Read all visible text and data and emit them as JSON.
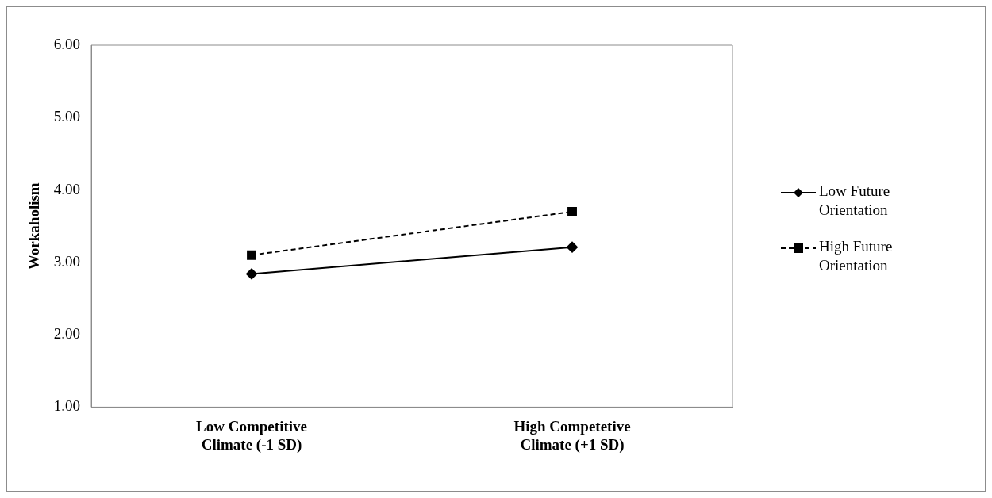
{
  "chart_data": {
    "type": "line",
    "ylabel": "Workaholism",
    "categories": [
      "Low Competitive Climate (-1 SD)",
      "High Competetive Climate (+1 SD)"
    ],
    "series": [
      {
        "name": "Low Future Orientation",
        "color": "#000000",
        "values": [
          2.84,
          3.21
        ],
        "marker": "diamond",
        "line_style": "solid"
      },
      {
        "name": "High Future Orientation",
        "color": "#000000",
        "values": [
          3.1,
          3.7
        ],
        "marker": "square",
        "line_style": "dashed"
      }
    ],
    "ylim": [
      1,
      6
    ],
    "yticks": [
      {
        "value": 1,
        "label": "1.00"
      },
      {
        "value": 2,
        "label": "2.00"
      },
      {
        "value": 3,
        "label": "3.00"
      },
      {
        "value": 4,
        "label": "4.00"
      },
      {
        "value": 5,
        "label": "5.00"
      },
      {
        "value": 6,
        "label": "6.00"
      }
    ],
    "grid": false,
    "legend": "right"
  }
}
